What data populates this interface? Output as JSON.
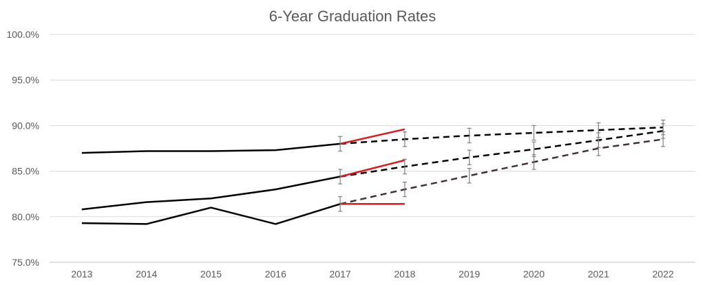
{
  "chart_data": {
    "type": "line",
    "title": "6-Year Graduation Rates",
    "xlabel": "",
    "ylabel": "",
    "categories": [
      "2013",
      "2014",
      "2015",
      "2016",
      "2017",
      "2018",
      "2019",
      "2020",
      "2021",
      "2022"
    ],
    "ylim": [
      75.0,
      100.0
    ],
    "yticks": [
      "75.0%",
      "80.0%",
      "85.0%",
      "90.0%",
      "95.0%",
      "100.0%"
    ],
    "ytick_values": [
      75,
      80,
      85,
      90,
      95,
      100
    ],
    "grid": true,
    "legend": "none",
    "colors": {
      "actual": "#000000",
      "projection": "#000000",
      "projection_low": "#403134",
      "stretch": "#e0161f",
      "error_bar": "#7f7f7f"
    },
    "series": [
      {
        "style": "actual",
        "values": [
          87.0,
          87.2,
          87.2,
          87.3,
          88.0,
          null,
          null,
          null,
          null,
          null
        ]
      },
      {
        "style": "actual",
        "values": [
          80.8,
          81.6,
          82.0,
          83.0,
          84.4,
          null,
          null,
          null,
          null,
          null
        ]
      },
      {
        "style": "actual",
        "values": [
          79.3,
          79.2,
          81.0,
          79.2,
          81.4,
          null,
          null,
          null,
          null,
          null
        ]
      },
      {
        "style": "projection",
        "values": [
          null,
          null,
          null,
          null,
          88.0,
          88.5,
          88.9,
          89.2,
          89.5,
          89.8
        ],
        "error_bars": 0.8
      },
      {
        "style": "projection",
        "values": [
          null,
          null,
          null,
          null,
          84.4,
          85.5,
          86.5,
          87.4,
          88.4,
          89.4
        ],
        "error_bars": 0.8
      },
      {
        "style": "projection_low",
        "values": [
          null,
          null,
          null,
          null,
          81.4,
          83.0,
          84.5,
          86.0,
          87.5,
          88.5
        ],
        "error_bars": 0.8
      },
      {
        "style": "stretch",
        "values": [
          null,
          null,
          null,
          null,
          88.0,
          89.6,
          null,
          null,
          null,
          null
        ]
      },
      {
        "style": "stretch",
        "values": [
          null,
          null,
          null,
          null,
          84.4,
          86.2,
          null,
          null,
          null,
          null
        ]
      },
      {
        "style": "stretch",
        "values": [
          null,
          null,
          null,
          null,
          81.4,
          81.4,
          null,
          null,
          null,
          null
        ]
      }
    ]
  }
}
